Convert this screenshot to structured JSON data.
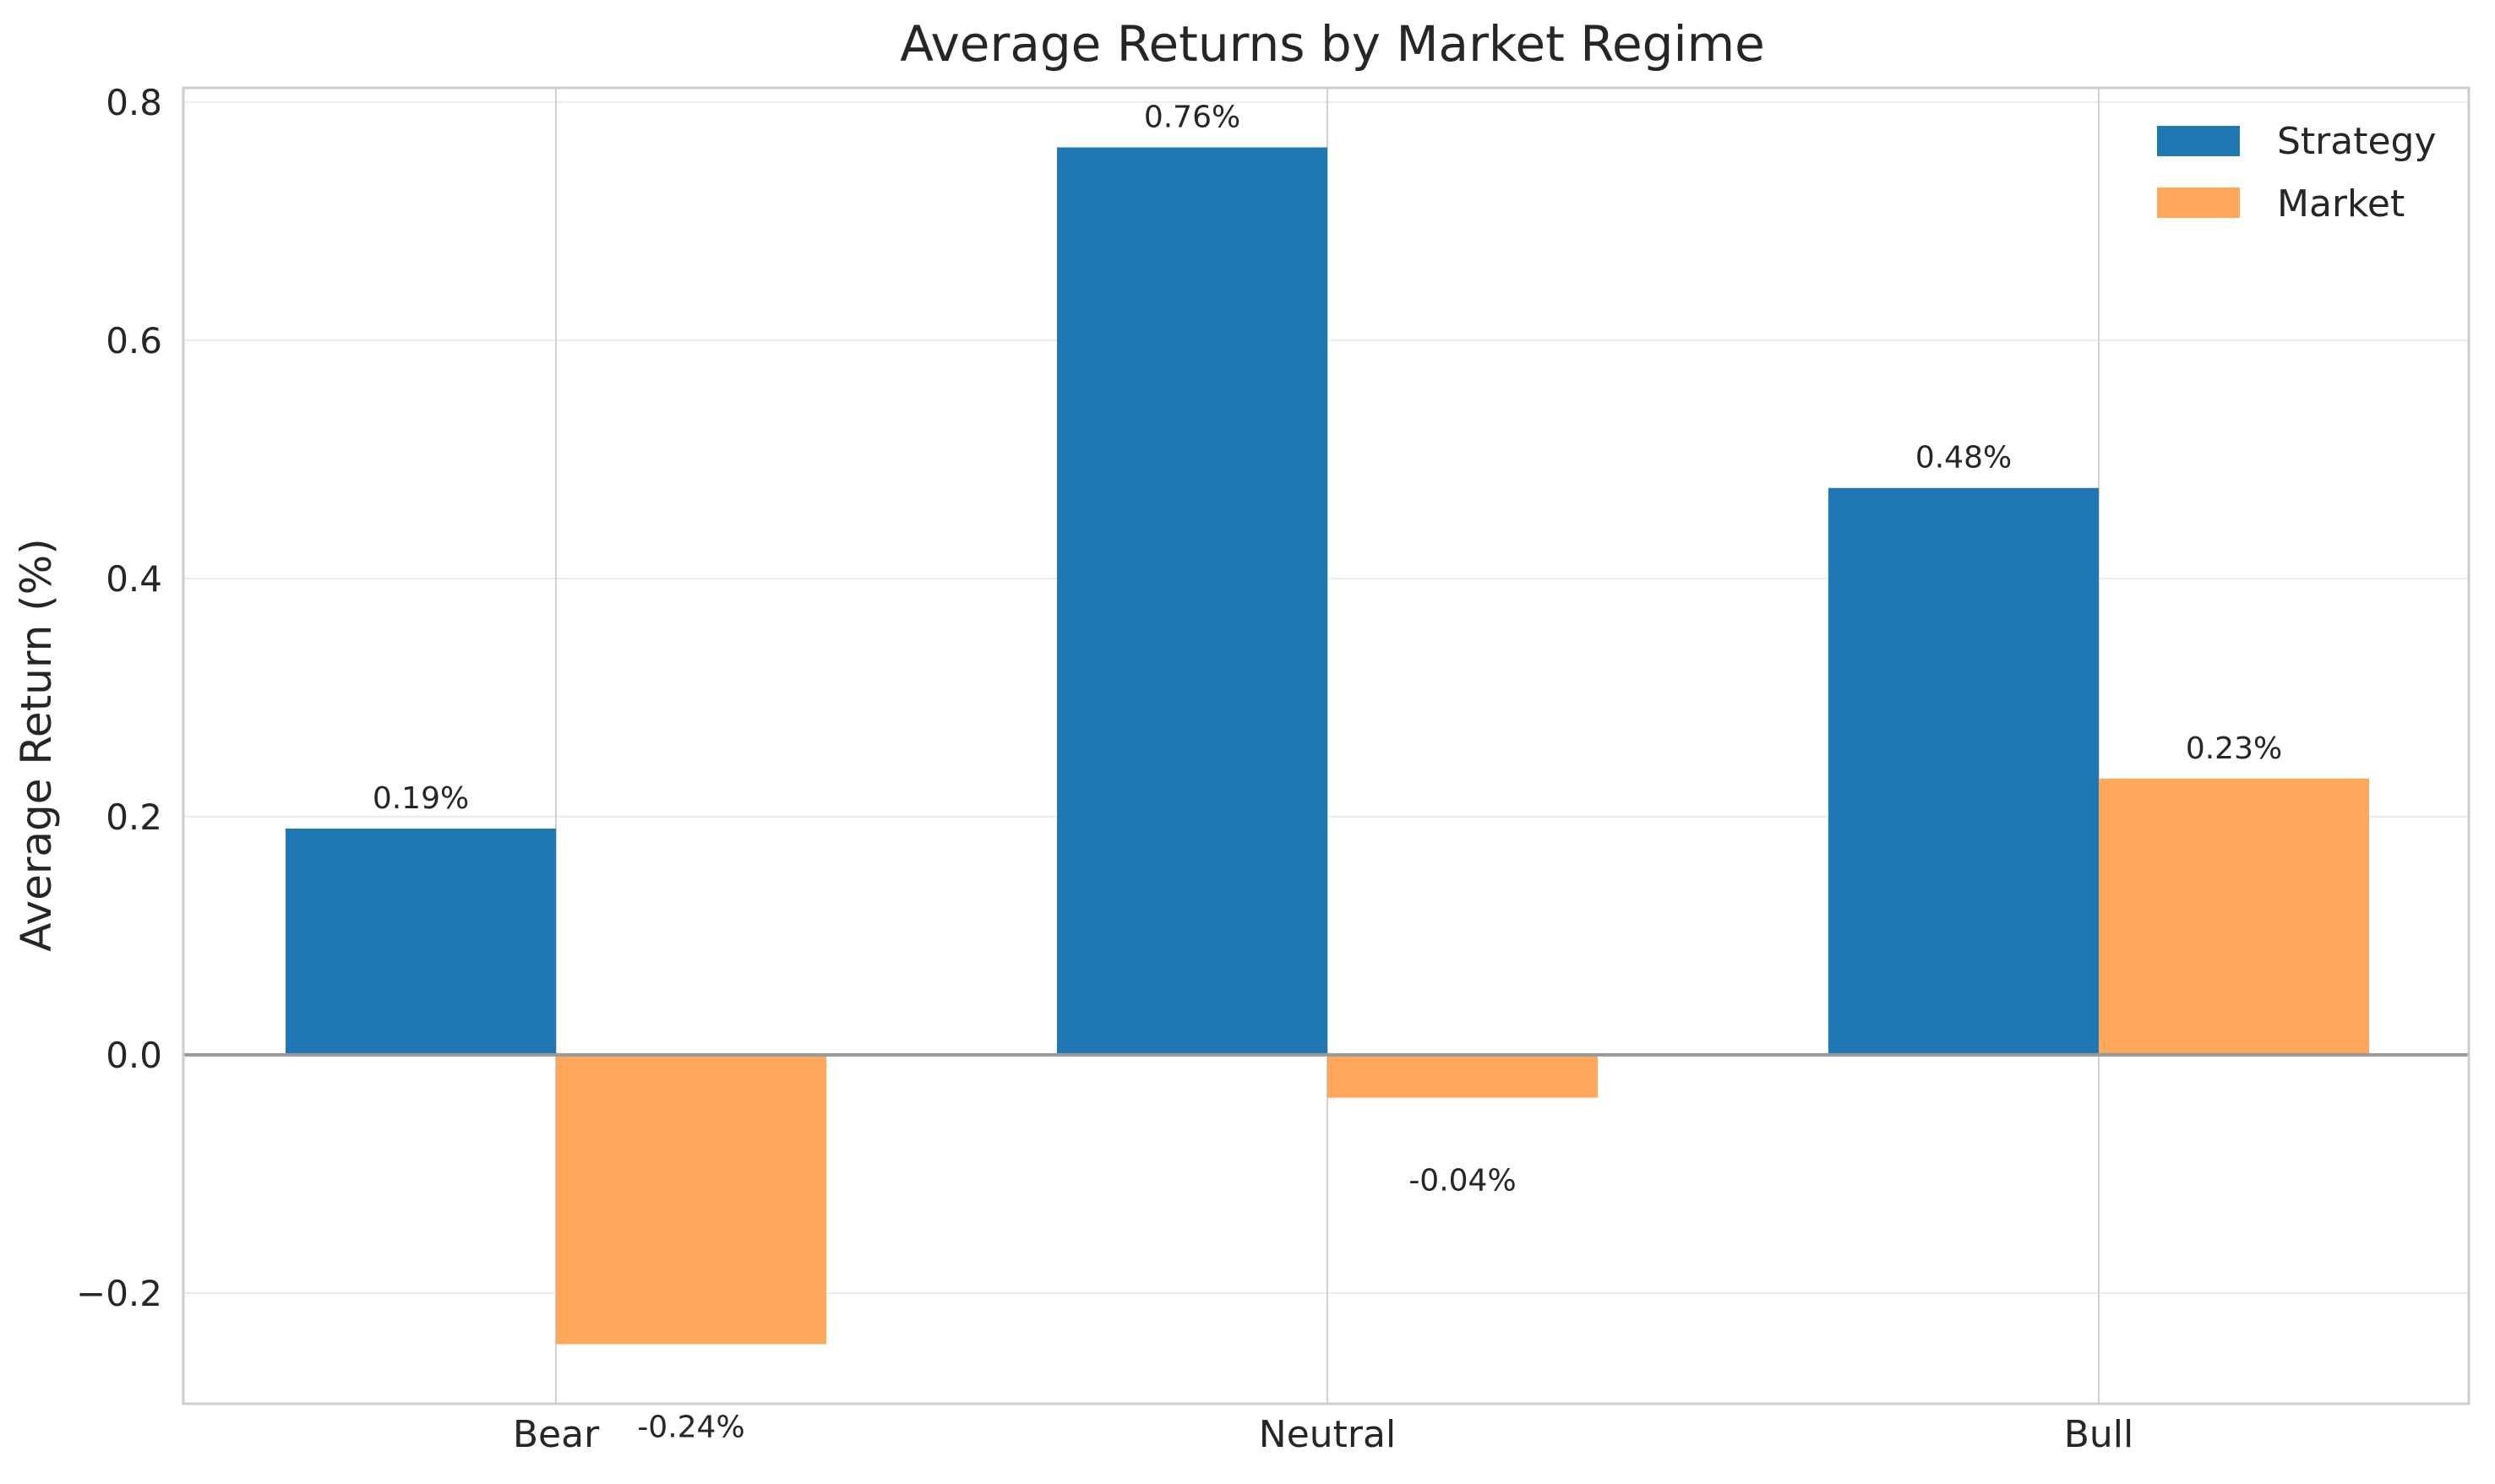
{
  "chart_data": {
    "type": "bar",
    "title": "Average Returns by Market Regime",
    "xlabel": "",
    "ylabel": "Average Return (%)",
    "categories": [
      "Bear",
      "Neutral",
      "Bull"
    ],
    "series": [
      {
        "name": "Strategy",
        "color": "#1f77b4",
        "values": [
          0.19,
          0.762,
          0.476
        ],
        "labels": [
          "0.19%",
          "0.76%",
          "0.48%"
        ]
      },
      {
        "name": "Market",
        "color": "#ff9f4a",
        "values": [
          -0.243,
          -0.036,
          0.232
        ],
        "labels": [
          "-0.24%",
          "-0.04%",
          "0.23%"
        ]
      }
    ],
    "ylim": [
      -0.293,
      0.812
    ],
    "yticks": [
      -0.2,
      0.0,
      0.2,
      0.4,
      0.6,
      0.8
    ],
    "ytick_labels": [
      "−0.2",
      "0.0",
      "0.2",
      "0.4",
      "0.6",
      "0.8"
    ],
    "grid": true,
    "legend_position": "upper right",
    "zero_line": true
  }
}
